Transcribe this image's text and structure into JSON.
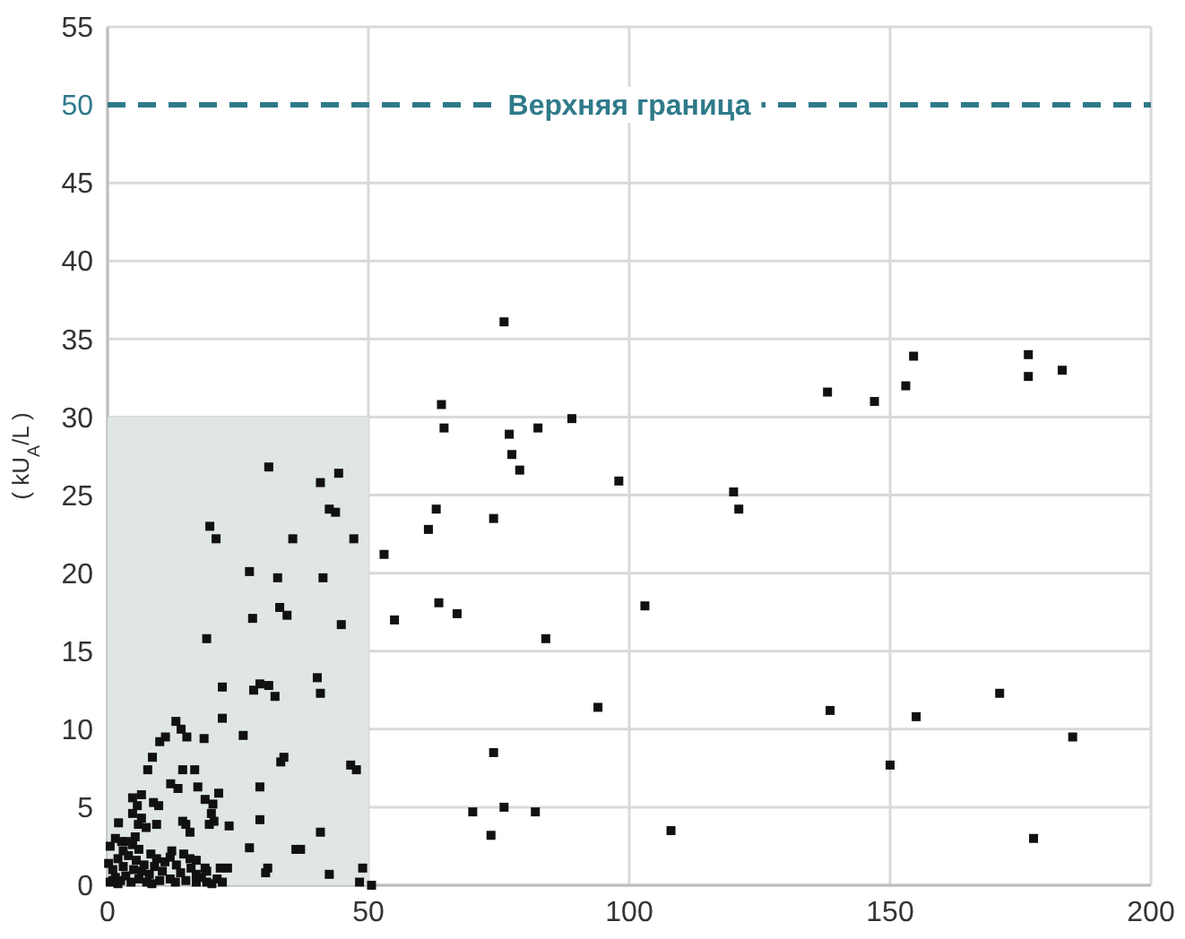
{
  "chart_data": {
    "type": "scatter",
    "ylabel": "( kU$_{A}$/L )",
    "xlim": [
      0,
      200
    ],
    "ylim": [
      0,
      55
    ],
    "xticks": [
      0,
      50,
      100,
      150,
      200
    ],
    "yticks": [
      0,
      5,
      10,
      15,
      20,
      25,
      30,
      35,
      40,
      45,
      50,
      55
    ],
    "grid": true,
    "marker": "square",
    "ref_lines": [
      {
        "axis": "y",
        "value": 50,
        "label": "Верхняя граница",
        "color": "#2e7a8a",
        "line_style": "dashed"
      }
    ],
    "series": [
      {
        "type": "histogram",
        "color": "#dfe6e5",
        "bins": [
          0,
          50
        ],
        "values": [
          30
        ]
      },
      {
        "color": "#111111",
        "x": [
          76,
          64,
          64.5,
          77,
          82.5,
          89,
          77.5,
          79,
          98,
          63,
          61.5,
          53,
          74,
          55,
          63.5,
          67,
          84,
          103,
          94,
          74,
          70,
          76,
          82,
          73.5,
          108,
          120,
          121,
          138,
          147,
          153,
          154.5,
          176.5,
          176.5,
          183,
          138.5,
          155,
          171,
          150,
          185,
          177.5,
          30.9,
          40.8,
          44.3,
          42.5,
          43.7,
          19.6,
          20.8,
          35.5,
          47.2,
          27.2,
          32.6,
          41.3,
          27.8,
          33,
          34.4,
          44.8,
          19,
          22,
          28,
          29.2,
          30.9,
          32.1,
          40.2,
          40.8,
          22,
          13.1,
          14.1,
          11.1,
          10,
          15.2,
          18.5,
          26,
          8.6,
          7.7,
          14.4,
          16.7,
          12.1,
          13.5,
          33.2,
          33.8,
          46.6,
          47.7,
          6.5,
          4.8,
          5.7,
          8.8,
          9.8,
          17.3,
          18.7,
          20.2,
          21.3,
          29.2,
          19.9,
          20.4,
          19.5,
          23.3,
          14.4,
          15,
          15.8,
          4.8,
          6.5,
          5.9,
          7.4,
          9.4,
          2.1,
          3.6,
          5.3,
          4.8,
          29.2,
          40.8,
          27.2,
          36.1,
          37,
          8.3,
          9.4,
          12.3,
          14.6,
          15.8,
          30.7,
          30.3,
          42.5,
          48.9,
          48.3,
          50.6,
          21.6,
          23,
          18.7,
          17,
          0.5,
          1,
          1.5,
          2,
          2.5,
          3,
          3.5,
          4,
          4.5,
          5,
          5.5,
          6,
          6.5,
          7,
          7.5,
          8,
          9,
          10,
          10.5,
          11,
          12,
          13,
          14,
          15,
          16,
          17,
          18,
          19,
          20,
          21,
          22,
          0.5,
          1.5,
          3,
          2,
          6,
          1,
          0.2,
          8.5,
          12,
          17,
          19,
          2.7,
          13.2
        ],
        "values": [
          36.1,
          30.8,
          29.3,
          28.9,
          29.3,
          29.9,
          27.6,
          26.6,
          25.9,
          24.1,
          22.8,
          21.2,
          23.5,
          17,
          18.1,
          17.4,
          15.8,
          17.9,
          11.4,
          8.5,
          4.7,
          5,
          4.7,
          3.2,
          3.5,
          25.2,
          24.1,
          31.6,
          31,
          32,
          33.9,
          34,
          32.6,
          33,
          11.2,
          10.8,
          12.3,
          7.7,
          9.5,
          3,
          26.8,
          25.8,
          26.4,
          24.1,
          23.9,
          23,
          22.2,
          22.2,
          22.2,
          20.1,
          19.7,
          19.7,
          17.1,
          17.8,
          17.3,
          16.7,
          15.8,
          12.7,
          12.5,
          12.9,
          12.8,
          12.1,
          13.3,
          12.3,
          10.7,
          10.5,
          10,
          9.5,
          9.2,
          9.5,
          9.4,
          9.6,
          8.2,
          7.4,
          7.4,
          7.4,
          6.5,
          6.2,
          7.9,
          8.2,
          7.7,
          7.4,
          5.8,
          5.6,
          5.1,
          5.3,
          5.1,
          6.3,
          5.5,
          5.2,
          5.9,
          6.3,
          4.6,
          4.1,
          3.9,
          3.8,
          4.1,
          3.9,
          3.4,
          4.6,
          4.3,
          3.9,
          3.7,
          3.9,
          4,
          2.8,
          3.1,
          2.6,
          4.2,
          3.4,
          2.4,
          2.3,
          2.3,
          2,
          1.7,
          2.2,
          2,
          1.7,
          1.1,
          0.8,
          0.7,
          1.1,
          0.2,
          0,
          1.1,
          1.1,
          1.1,
          0.7,
          0.2,
          1,
          0.5,
          1.7,
          0.3,
          1.2,
          0.6,
          1.9,
          0.2,
          1,
          1.6,
          0.4,
          0.9,
          1.3,
          0.2,
          0.7,
          1.2,
          0.3,
          0.9,
          1.5,
          0.4,
          0.2,
          0.8,
          0.3,
          1.1,
          0.2,
          0.5,
          0.2,
          0.1,
          0.4,
          0.2,
          2.5,
          3,
          2.2,
          0.1,
          2.3,
          0.3,
          1.4,
          0.1,
          1.8,
          1.6,
          0.9,
          2.8,
          1.3
        ]
      }
    ]
  }
}
